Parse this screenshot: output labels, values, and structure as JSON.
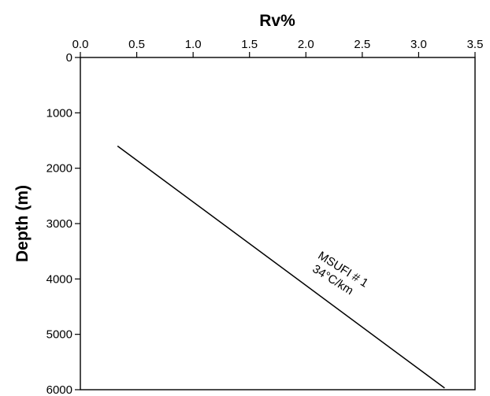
{
  "chart_data": {
    "type": "line",
    "title": "",
    "xlabel": "Rv%",
    "ylabel": "Depth (m)",
    "x_axis_position": "top",
    "y_axis_inverted": true,
    "xlim": [
      0.0,
      3.5
    ],
    "ylim": [
      0,
      6000
    ],
    "x_ticks": [
      0.0,
      0.5,
      1.0,
      1.5,
      2.0,
      2.5,
      3.0,
      3.5
    ],
    "x_tick_labels": [
      "0.0",
      "0.5",
      "1.0",
      "1.5",
      "2.0",
      "2.5",
      "3.0",
      "3.5"
    ],
    "y_ticks": [
      0,
      1000,
      2000,
      3000,
      4000,
      5000,
      6000
    ],
    "y_tick_labels": [
      "0",
      "1000",
      "2000",
      "3000",
      "4000",
      "5000",
      "6000"
    ],
    "grid": false,
    "series": [
      {
        "x": [
          0.33,
          3.23
        ],
        "y": [
          1600,
          5970
        ],
        "color": "#000000"
      }
    ],
    "annotations": [
      {
        "text": "MSUFI # 1",
        "x": 2.45,
        "y": 3950
      },
      {
        "text": "34°C/km",
        "x": 2.45,
        "y": 4250
      }
    ]
  }
}
